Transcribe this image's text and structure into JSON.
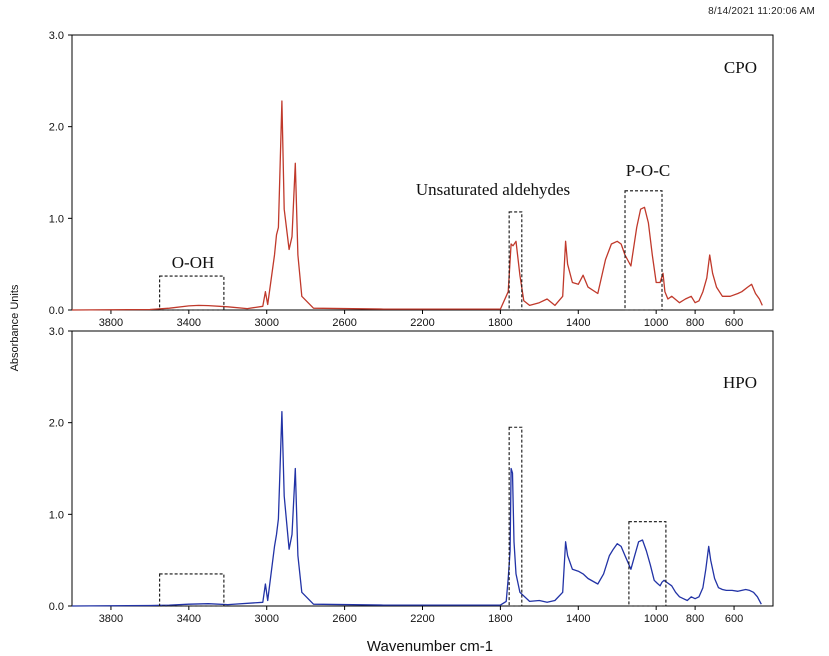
{
  "timestamp": "8/14/2021   11:20:06 AM",
  "chart_data": {
    "type": "line",
    "xlabel": "Wavenumber cm-1",
    "ylabel": "Absorbance Units",
    "xlim": [
      4000,
      400
    ],
    "x_reversed": true,
    "xticks": [
      3800,
      3400,
      3000,
      2600,
      2200,
      1800,
      1400,
      1000,
      800,
      600
    ],
    "ylim": [
      0,
      3.0
    ],
    "yticks": [
      "0.0",
      "1.0",
      "2.0",
      "3.0"
    ],
    "grid": false,
    "panels": [
      {
        "label": "CPO",
        "color": "#c0392b",
        "points": [
          [
            4000,
            0
          ],
          [
            3600,
            0.005
          ],
          [
            3500,
            0.02
          ],
          [
            3400,
            0.045
          ],
          [
            3350,
            0.05
          ],
          [
            3300,
            0.048
          ],
          [
            3200,
            0.035
          ],
          [
            3100,
            0.015
          ],
          [
            3020,
            0.04
          ],
          [
            3007,
            0.2
          ],
          [
            2995,
            0.06
          ],
          [
            2960,
            0.6
          ],
          [
            2950,
            0.82
          ],
          [
            2940,
            0.9
          ],
          [
            2922,
            2.28
          ],
          [
            2910,
            1.1
          ],
          [
            2885,
            0.66
          ],
          [
            2870,
            0.8
          ],
          [
            2853,
            1.6
          ],
          [
            2840,
            0.6
          ],
          [
            2820,
            0.15
          ],
          [
            2760,
            0.02
          ],
          [
            2400,
            0.01
          ],
          [
            1800,
            0.01
          ],
          [
            1760,
            0.2
          ],
          [
            1745,
            0.72
          ],
          [
            1735,
            0.7
          ],
          [
            1720,
            0.75
          ],
          [
            1700,
            0.38
          ],
          [
            1680,
            0.1
          ],
          [
            1650,
            0.05
          ],
          [
            1600,
            0.08
          ],
          [
            1560,
            0.12
          ],
          [
            1520,
            0.05
          ],
          [
            1480,
            0.15
          ],
          [
            1465,
            0.75
          ],
          [
            1455,
            0.5
          ],
          [
            1430,
            0.3
          ],
          [
            1400,
            0.28
          ],
          [
            1375,
            0.38
          ],
          [
            1350,
            0.25
          ],
          [
            1300,
            0.18
          ],
          [
            1260,
            0.55
          ],
          [
            1230,
            0.72
          ],
          [
            1200,
            0.75
          ],
          [
            1180,
            0.72
          ],
          [
            1160,
            0.6
          ],
          [
            1130,
            0.48
          ],
          [
            1100,
            0.9
          ],
          [
            1080,
            1.1
          ],
          [
            1060,
            1.12
          ],
          [
            1040,
            0.95
          ],
          [
            1020,
            0.6
          ],
          [
            1000,
            0.3
          ],
          [
            980,
            0.3
          ],
          [
            965,
            0.4
          ],
          [
            955,
            0.2
          ],
          [
            940,
            0.12
          ],
          [
            920,
            0.15
          ],
          [
            880,
            0.08
          ],
          [
            850,
            0.12
          ],
          [
            820,
            0.15
          ],
          [
            800,
            0.08
          ],
          [
            780,
            0.1
          ],
          [
            760,
            0.2
          ],
          [
            740,
            0.35
          ],
          [
            725,
            0.6
          ],
          [
            710,
            0.4
          ],
          [
            690,
            0.25
          ],
          [
            660,
            0.15
          ],
          [
            620,
            0.15
          ],
          [
            580,
            0.18
          ],
          [
            560,
            0.2
          ],
          [
            530,
            0.25
          ],
          [
            510,
            0.28
          ],
          [
            490,
            0.18
          ],
          [
            470,
            0.12
          ],
          [
            455,
            0.05
          ]
        ]
      },
      {
        "label": "HPO",
        "color": "#2233a6",
        "points": [
          [
            4000,
            0
          ],
          [
            3600,
            0.005
          ],
          [
            3500,
            0.01
          ],
          [
            3400,
            0.02
          ],
          [
            3300,
            0.025
          ],
          [
            3200,
            0.015
          ],
          [
            3020,
            0.04
          ],
          [
            3007,
            0.24
          ],
          [
            2995,
            0.06
          ],
          [
            2960,
            0.65
          ],
          [
            2950,
            0.78
          ],
          [
            2940,
            0.95
          ],
          [
            2922,
            2.12
          ],
          [
            2910,
            1.2
          ],
          [
            2885,
            0.62
          ],
          [
            2870,
            0.78
          ],
          [
            2853,
            1.5
          ],
          [
            2840,
            0.55
          ],
          [
            2820,
            0.15
          ],
          [
            2760,
            0.02
          ],
          [
            2400,
            0.01
          ],
          [
            1800,
            0.01
          ],
          [
            1770,
            0.05
          ],
          [
            1760,
            0.3
          ],
          [
            1750,
            0.6
          ],
          [
            1745,
            1.5
          ],
          [
            1738,
            1.45
          ],
          [
            1730,
            0.7
          ],
          [
            1720,
            0.35
          ],
          [
            1700,
            0.15
          ],
          [
            1650,
            0.05
          ],
          [
            1600,
            0.06
          ],
          [
            1560,
            0.04
          ],
          [
            1520,
            0.06
          ],
          [
            1480,
            0.15
          ],
          [
            1465,
            0.7
          ],
          [
            1455,
            0.55
          ],
          [
            1430,
            0.4
          ],
          [
            1400,
            0.38
          ],
          [
            1375,
            0.35
          ],
          [
            1350,
            0.3
          ],
          [
            1300,
            0.24
          ],
          [
            1270,
            0.35
          ],
          [
            1240,
            0.55
          ],
          [
            1220,
            0.62
          ],
          [
            1200,
            0.68
          ],
          [
            1180,
            0.65
          ],
          [
            1160,
            0.55
          ],
          [
            1130,
            0.4
          ],
          [
            1110,
            0.55
          ],
          [
            1090,
            0.7
          ],
          [
            1070,
            0.72
          ],
          [
            1050,
            0.6
          ],
          [
            1030,
            0.45
          ],
          [
            1010,
            0.28
          ],
          [
            995,
            0.25
          ],
          [
            980,
            0.22
          ],
          [
            970,
            0.26
          ],
          [
            960,
            0.28
          ],
          [
            940,
            0.25
          ],
          [
            920,
            0.22
          ],
          [
            900,
            0.15
          ],
          [
            880,
            0.1
          ],
          [
            860,
            0.08
          ],
          [
            840,
            0.06
          ],
          [
            820,
            0.1
          ],
          [
            800,
            0.08
          ],
          [
            780,
            0.1
          ],
          [
            760,
            0.2
          ],
          [
            745,
            0.4
          ],
          [
            730,
            0.65
          ],
          [
            720,
            0.5
          ],
          [
            700,
            0.3
          ],
          [
            680,
            0.2
          ],
          [
            660,
            0.18
          ],
          [
            640,
            0.17
          ],
          [
            610,
            0.17
          ],
          [
            580,
            0.16
          ],
          [
            560,
            0.17
          ],
          [
            540,
            0.18
          ],
          [
            520,
            0.17
          ],
          [
            500,
            0.15
          ],
          [
            480,
            0.1
          ],
          [
            460,
            0.02
          ]
        ]
      }
    ],
    "annotations": [
      {
        "panel": 0,
        "text": "O-OH",
        "box": {
          "x": [
            3550,
            3220
          ],
          "y": [
            0,
            0.37
          ]
        }
      },
      {
        "panel": 0,
        "text": "Unsaturated aldehydes",
        "box": {
          "x": [
            1755,
            1690
          ],
          "y": [
            0,
            1.07
          ]
        }
      },
      {
        "panel": 0,
        "text": "P-O-C",
        "box": {
          "x": [
            1160,
            970
          ],
          "y": [
            0,
            1.3
          ]
        }
      },
      {
        "panel": 1,
        "text": "",
        "box": {
          "x": [
            3550,
            3220
          ],
          "y": [
            0,
            0.35
          ]
        }
      },
      {
        "panel": 1,
        "text": "",
        "box": {
          "x": [
            1755,
            1690
          ],
          "y": [
            0,
            1.95
          ]
        }
      },
      {
        "panel": 1,
        "text": "",
        "box": {
          "x": [
            1140,
            950
          ],
          "y": [
            0,
            0.92
          ]
        }
      }
    ]
  }
}
